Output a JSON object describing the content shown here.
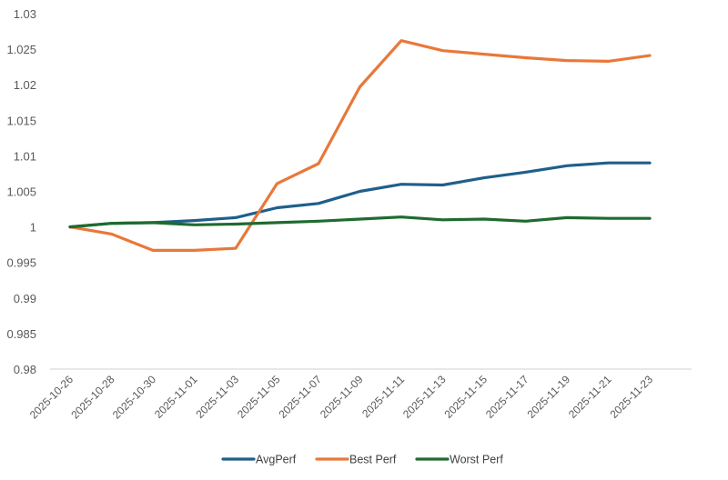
{
  "chart_data": {
    "type": "line",
    "title": "",
    "xlabel": "",
    "ylabel": "",
    "ylim": [
      0.98,
      1.03
    ],
    "yticks": [
      "1.03",
      "1.025",
      "1.02",
      "1.015",
      "1.01",
      "1.005",
      "1",
      "0.995",
      "0.99",
      "0.985",
      "0.98"
    ],
    "grid": false,
    "legend_position": "bottom",
    "categories": [
      "2025-10-26",
      "2025-10-28",
      "2025-10-30",
      "2025-11-01",
      "2025-11-03",
      "2025-11-05",
      "2025-11-07",
      "2025-11-09",
      "2025-11-11",
      "2025-11-13",
      "2025-11-15",
      "2025-11-17",
      "2025-11-19",
      "2025-11-21",
      "2025-11-23"
    ],
    "series": [
      {
        "name": "AvgPerf",
        "color": "#1f5f8b",
        "values": [
          1.0,
          1.0005,
          1.0006,
          1.0009,
          1.0013,
          1.0027,
          1.0033,
          1.005,
          1.006,
          1.0059,
          1.0069,
          1.0077,
          1.0086,
          1.009,
          1.009
        ]
      },
      {
        "name": "Best Perf",
        "color": "#e8783a",
        "values": [
          1.0,
          0.999,
          0.9967,
          0.9967,
          0.997,
          1.0061,
          1.0089,
          1.0197,
          1.0262,
          1.0248,
          1.0243,
          1.0238,
          1.0234,
          1.0233,
          1.0241
        ]
      },
      {
        "name": "Worst Perf",
        "color": "#1e6b2e",
        "values": [
          1.0,
          1.0005,
          1.0006,
          1.0003,
          1.0004,
          1.0006,
          1.0008,
          1.0011,
          1.0014,
          1.001,
          1.0011,
          1.0008,
          1.0013,
          1.0012,
          1.0012
        ]
      }
    ]
  }
}
